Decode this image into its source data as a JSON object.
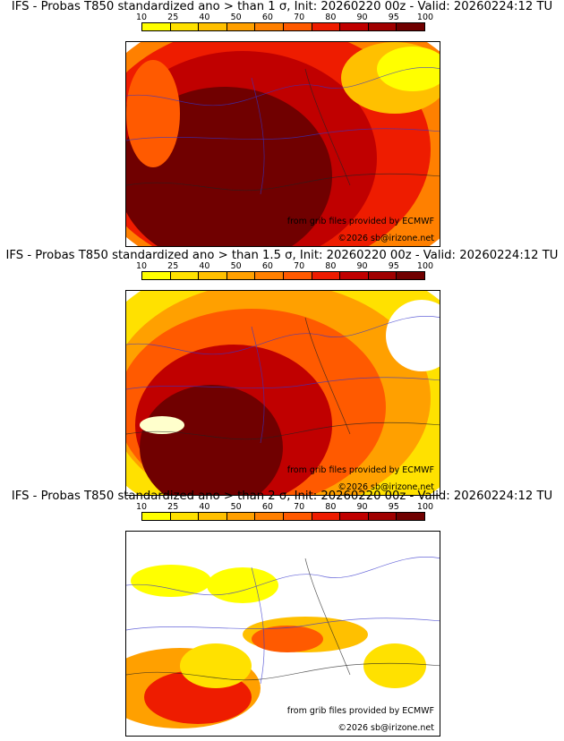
{
  "panels": [
    {
      "title": "IFS - Probas T850  standardized ano > than 1 σ, Init: 20260220 00z - Valid: 20260224:12 TU",
      "credit_source": "from grib files provided by ECMWF",
      "credit_copyright": "©2026 sb@irizone.net",
      "intensity": 0.85
    },
    {
      "title": "IFS - Probas T850  standardized ano > than 1.5 σ, Init: 20260220 00z - Valid: 20260224:12 TU",
      "credit_source": "from grib files provided by ECMWF",
      "credit_copyright": "©2026 sb@irizone.net",
      "intensity": 0.6
    },
    {
      "title": "IFS - Probas T850  standardized ano > than 2 σ, Init: 20260220 00z - Valid: 20260224:12 TU",
      "credit_source": "from grib files provided by ECMWF",
      "credit_copyright": "©2026 sb@irizone.net",
      "intensity": 0.2
    }
  ],
  "colorbar": {
    "ticks": [
      "10",
      "25",
      "40",
      "50",
      "60",
      "70",
      "80",
      "90",
      "95",
      "100"
    ],
    "colors": [
      "#ffff00",
      "#ffe100",
      "#ffc000",
      "#ffa000",
      "#ff8000",
      "#ff5a00",
      "#ee1c00",
      "#c00000",
      "#a00000",
      "#700000"
    ]
  }
}
